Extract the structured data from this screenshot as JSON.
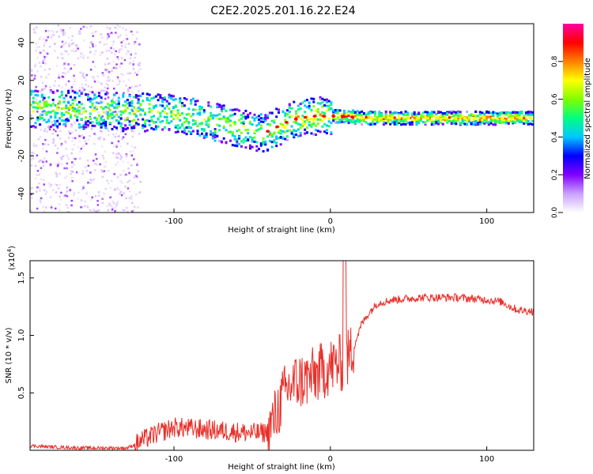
{
  "title": "C2E2.2025.201.16.22.E24",
  "chart_data": [
    {
      "type": "heatmap",
      "xlabel": "Height of straight line (km)",
      "ylabel": "Frequency (Hz)",
      "xlim": [
        -192,
        130
      ],
      "ylim": [
        -50,
        50
      ],
      "xticks": [
        -100,
        0,
        100
      ],
      "yticks": [
        -40,
        -20,
        0,
        20,
        40
      ],
      "colorbar": {
        "label": "Normalized spectral amplitude",
        "range": [
          0,
          1
        ],
        "ticks": [
          0.0,
          0.2,
          0.4,
          0.6,
          0.8
        ],
        "colors": [
          "#ffffff",
          "#c9a0ff",
          "#8000ff",
          "#0000ff",
          "#00c8ff",
          "#00ff80",
          "#80ff00",
          "#ffff00",
          "#ff8000",
          "#ff0000",
          "#ff00a0"
        ]
      },
      "ridge": {
        "x": [
          -190,
          -170,
          -150,
          -130,
          -110,
          -100,
          -90,
          -80,
          -70,
          -60,
          -50,
          -45,
          -40,
          -35,
          -30,
          -25,
          -20,
          -10,
          0,
          10,
          20,
          40,
          60,
          80,
          100,
          130
        ],
        "y": [
          5,
          5,
          4,
          3,
          3,
          2,
          1,
          -1,
          -3,
          -5,
          -7,
          -8,
          -7,
          -5,
          -3,
          -1,
          0,
          1,
          1,
          1,
          0,
          0,
          0,
          0,
          0,
          0
        ]
      }
    },
    {
      "type": "line",
      "xlabel": "Height of straight line (km)",
      "ylabel": "SNR (10 * v/v)",
      "scale_label": "(x10",
      "scale_exponent": "4",
      "xlim": [
        -192,
        130
      ],
      "ylim": [
        0,
        16500
      ],
      "xticks": [
        -100,
        0,
        100
      ],
      "yticks": [
        5000,
        10000,
        15000
      ],
      "ytick_labels": [
        "0.5",
        "1.0",
        "1.5"
      ],
      "color": "#e8302a",
      "series": [
        {
          "x": [
            -192,
            -180,
            -160,
            -140,
            -130,
            -125,
            -120,
            -110,
            -100,
            -90,
            -80,
            -70,
            -60,
            -50,
            -45,
            -40,
            -35,
            -30,
            -25,
            -20,
            -15,
            -10,
            -5,
            0,
            5,
            10,
            15,
            20,
            25,
            30,
            40,
            50,
            60,
            70,
            80,
            90,
            100,
            110,
            115,
            120,
            130
          ],
          "y": [
            400,
            300,
            200,
            200,
            200,
            500,
            900,
            1500,
            2000,
            1900,
            1800,
            1700,
            1600,
            1500,
            1500,
            1600,
            3000,
            4800,
            5700,
            6000,
            6200,
            6500,
            6900,
            7300,
            7500,
            7700,
            9000,
            11000,
            12000,
            12800,
            13100,
            13200,
            13300,
            13300,
            13300,
            13200,
            13100,
            12900,
            12500,
            12200,
            12100
          ]
        }
      ]
    }
  ]
}
